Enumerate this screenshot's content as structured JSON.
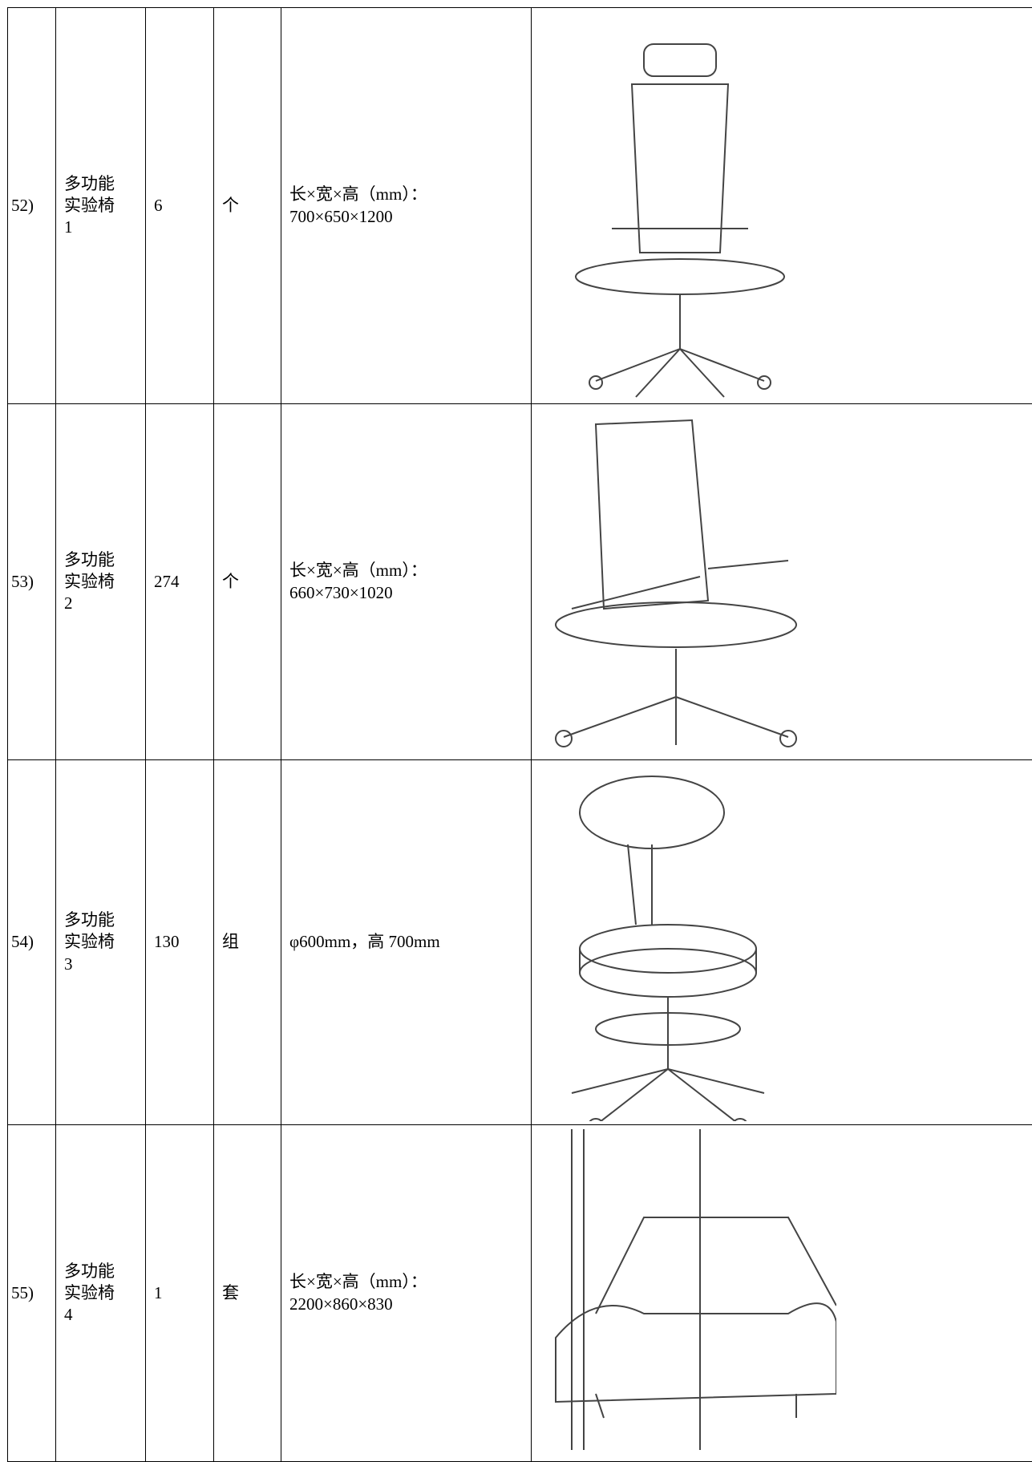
{
  "table": {
    "rows": [
      {
        "no": "52)",
        "name": "多功能实验椅1",
        "qty": 6,
        "unit": "个",
        "spec": [
          "长×宽×高（mm）：",
          "700×650×1200"
        ]
      },
      {
        "no": "53)",
        "name": "多功能实验椅2",
        "qty": 274,
        "unit": "个",
        "spec": [
          "长×宽×高（mm）：",
          "660×730×1020"
        ]
      },
      {
        "no": "54)",
        "name": "多功能实验椅3",
        "qty": 130,
        "unit": "组",
        "spec": [
          "φ600mm，高 700mm"
        ]
      },
      {
        "no": "55)",
        "name": "多功能实验椅4",
        "qty": 1,
        "unit": "套",
        "spec": [
          "长×宽×高（mm）：",
          "2200×860×830"
        ]
      }
    ]
  }
}
